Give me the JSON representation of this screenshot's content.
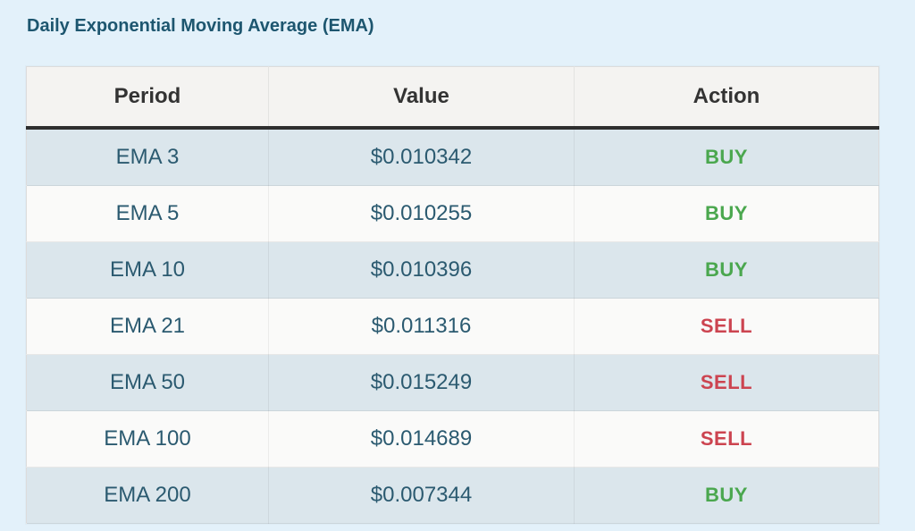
{
  "page": {
    "title": "Daily Exponential Moving Average (EMA)"
  },
  "table": {
    "columns": [
      "Period",
      "Value",
      "Action"
    ],
    "rows": [
      {
        "period": "EMA 3",
        "value": "$0.010342",
        "action": "BUY"
      },
      {
        "period": "EMA 5",
        "value": "$0.010255",
        "action": "BUY"
      },
      {
        "period": "EMA 10",
        "value": "$0.010396",
        "action": "BUY"
      },
      {
        "period": "EMA 21",
        "value": "$0.011316",
        "action": "SELL"
      },
      {
        "period": "EMA 50",
        "value": "$0.015249",
        "action": "SELL"
      },
      {
        "period": "EMA 100",
        "value": "$0.014689",
        "action": "SELL"
      },
      {
        "period": "EMA 200",
        "value": "$0.007344",
        "action": "BUY"
      }
    ]
  },
  "colors": {
    "page_bg": "#e3f1fa",
    "title": "#1d566f",
    "header_bg": "#f4f3f1",
    "header_text": "#333333",
    "header_rule": "#2e2e2e",
    "row_odd_bg": "#dbe6ec",
    "row_even_bg": "#fafaf9",
    "cell_text": "#2b5a70",
    "buy": "#4aa74e",
    "sell": "#cc4450"
  }
}
